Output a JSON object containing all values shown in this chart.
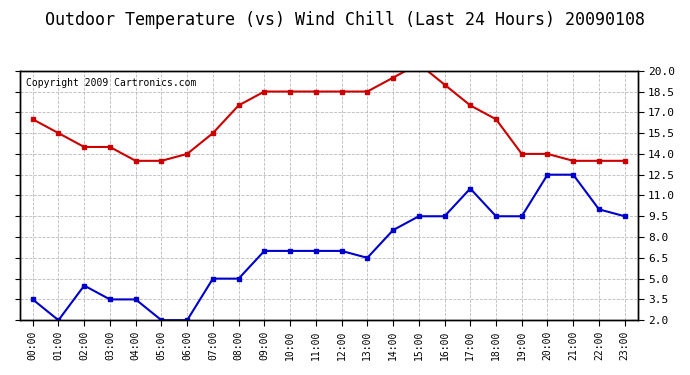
{
  "title": "Outdoor Temperature (vs) Wind Chill (Last 24 Hours) 20090108",
  "copyright": "Copyright 2009 Cartronics.com",
  "hours": [
    "00:00",
    "01:00",
    "02:00",
    "03:00",
    "04:00",
    "05:00",
    "06:00",
    "07:00",
    "08:00",
    "09:00",
    "10:00",
    "11:00",
    "12:00",
    "13:00",
    "14:00",
    "15:00",
    "16:00",
    "17:00",
    "18:00",
    "19:00",
    "20:00",
    "21:00",
    "22:00",
    "23:00"
  ],
  "temp": [
    16.5,
    15.5,
    14.5,
    14.5,
    13.5,
    13.5,
    14.0,
    15.5,
    17.5,
    18.5,
    18.5,
    18.5,
    18.5,
    18.5,
    19.5,
    20.5,
    19.0,
    17.5,
    16.5,
    14.0,
    14.0,
    13.5,
    13.5,
    13.5
  ],
  "windchill": [
    3.5,
    2.0,
    4.5,
    3.5,
    3.5,
    2.0,
    2.0,
    5.0,
    5.0,
    7.0,
    7.0,
    7.0,
    7.0,
    6.5,
    8.5,
    9.5,
    9.5,
    11.5,
    9.5,
    9.5,
    12.5,
    12.5,
    10.0,
    9.5
  ],
  "temp_color": "#cc0000",
  "windchill_color": "#0000cc",
  "bg_color": "#ffffff",
  "plot_bg_color": "#ffffff",
  "grid_color": "#aaaaaa",
  "ylim": [
    2.0,
    20.0
  ],
  "yticks": [
    2.0,
    3.5,
    5.0,
    6.5,
    8.0,
    9.5,
    11.0,
    12.5,
    14.0,
    15.5,
    17.0,
    18.5,
    20.0
  ],
  "title_fontsize": 12,
  "copyright_fontsize": 7
}
